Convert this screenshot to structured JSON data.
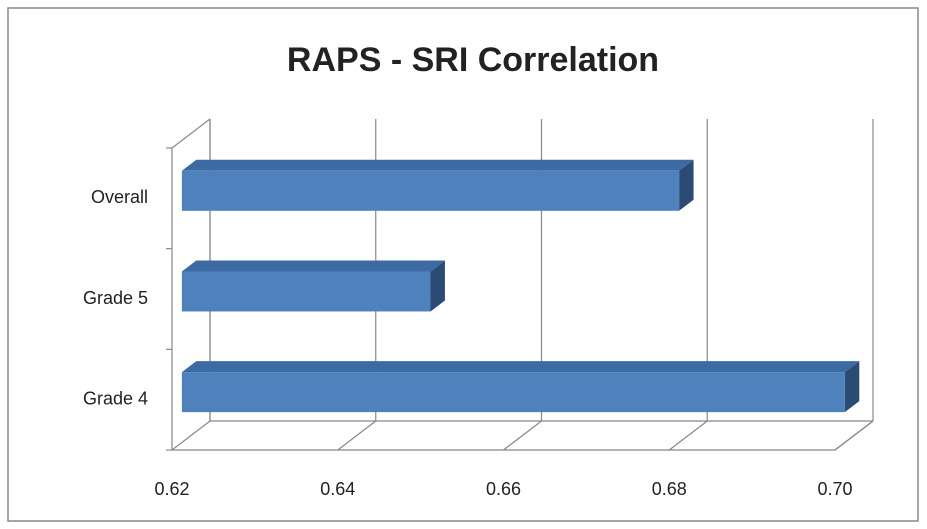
{
  "chart_data": {
    "type": "bar3d_horizontal",
    "title": "RAPS - SRI Correlation",
    "categories": [
      "Grade 4",
      "Grade 5",
      "Overall"
    ],
    "values": [
      0.7,
      0.65,
      0.68
    ],
    "color": "#4f81bd",
    "xlim": [
      0.62,
      0.7
    ],
    "xticks": [
      0.62,
      0.64,
      0.66,
      0.68,
      {
        "value": 0.7,
        "label": "0.70"
      }
    ],
    "grid": true
  }
}
